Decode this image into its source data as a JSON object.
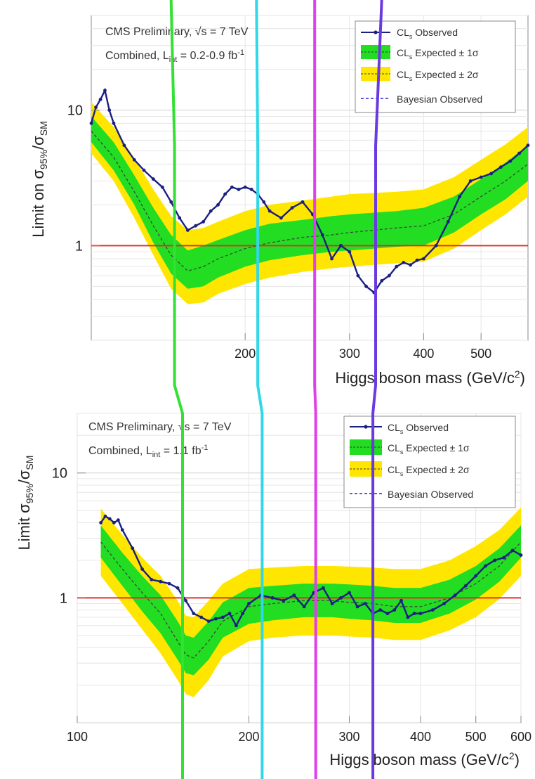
{
  "chart_data": [
    {
      "type": "line",
      "text_lines": [
        "CMS Preliminary, √s = 7 TeV",
        "Combined, L",
        "int",
        " = 0.2-0.9 fb",
        "-1"
      ],
      "ylabel": "Limit on σ",
      "ylabel_sub1": "95%",
      "ylabel_mid": "/σ",
      "ylabel_sub2": "SM",
      "xlabel": "Higgs boson mass (GeV/c",
      "xlabel_sup": "2",
      "xlabel_tail": ")",
      "xscale": "log",
      "yscale": "log",
      "xlim": [
        110,
        600
      ],
      "ylim": [
        0.2,
        50
      ],
      "x_ticks": [
        200,
        300,
        400,
        500
      ],
      "x_tick_labels": [
        "200",
        "300",
        "400",
        "500"
      ],
      "y_ticks": [
        1,
        10
      ],
      "y_tick_labels": [
        "1",
        "10"
      ],
      "reference_line": {
        "y": 1,
        "color": "#e0302a"
      },
      "legend": {
        "position": "top-right",
        "entries": [
          {
            "main": "CL",
            "sub": "s",
            "tail": " Observed",
            "style": "observed"
          },
          {
            "main": "CL",
            "sub": "s",
            "tail": " Expected ± 1σ",
            "style": "band1"
          },
          {
            "main": "CL",
            "sub": "s",
            "tail": " Expected ± 2σ",
            "style": "band2"
          },
          {
            "main": "Bayesian Observed",
            "sub": "",
            "tail": "",
            "style": "bayes"
          }
        ]
      },
      "series": [
        {
          "name": "Observed",
          "x": [
            110,
            112,
            114,
            116,
            118,
            120,
            125,
            130,
            135,
            140,
            145,
            150,
            155,
            160,
            165,
            170,
            175,
            180,
            185,
            190,
            195,
            200,
            205,
            210,
            215,
            220,
            230,
            240,
            250,
            260,
            270,
            280,
            290,
            300,
            310,
            320,
            330,
            340,
            350,
            360,
            370,
            380,
            390,
            400,
            420,
            440,
            460,
            480,
            500,
            520,
            540,
            560,
            580,
            600
          ],
          "y": [
            8.0,
            10.5,
            12.0,
            14.0,
            10.0,
            8.0,
            5.5,
            4.3,
            3.6,
            3.1,
            2.7,
            2.1,
            1.6,
            1.3,
            1.4,
            1.5,
            1.8,
            2.0,
            2.4,
            2.7,
            2.6,
            2.7,
            2.6,
            2.4,
            2.1,
            1.8,
            1.6,
            1.9,
            2.1,
            1.7,
            1.2,
            0.8,
            1.0,
            0.9,
            0.6,
            0.5,
            0.45,
            0.55,
            0.6,
            0.7,
            0.75,
            0.72,
            0.78,
            0.8,
            1.0,
            1.5,
            2.3,
            3.0,
            3.2,
            3.4,
            3.8,
            4.2,
            4.8,
            5.5
          ]
        },
        {
          "name": "Expected",
          "x": [
            110,
            120,
            130,
            140,
            150,
            160,
            170,
            180,
            200,
            220,
            250,
            280,
            300,
            330,
            360,
            400,
            450,
            500,
            550,
            600
          ],
          "y": [
            7.0,
            4.5,
            2.5,
            1.4,
            0.85,
            0.65,
            0.7,
            0.8,
            0.95,
            1.05,
            1.15,
            1.2,
            1.25,
            1.3,
            1.35,
            1.4,
            1.7,
            2.3,
            3.0,
            4.0
          ],
          "band1_low": [
            5.8,
            3.6,
            2.0,
            1.05,
            0.62,
            0.48,
            0.5,
            0.58,
            0.7,
            0.78,
            0.85,
            0.9,
            0.92,
            0.95,
            0.98,
            1.0,
            1.25,
            1.7,
            2.2,
            3.0
          ],
          "band1_high": [
            9.0,
            5.8,
            3.3,
            1.9,
            1.2,
            0.92,
            1.0,
            1.1,
            1.3,
            1.45,
            1.55,
            1.65,
            1.7,
            1.75,
            1.8,
            1.9,
            2.3,
            3.1,
            4.1,
            5.5
          ],
          "band2_low": [
            4.8,
            3.0,
            1.6,
            0.85,
            0.48,
            0.37,
            0.38,
            0.44,
            0.52,
            0.58,
            0.64,
            0.68,
            0.7,
            0.72,
            0.74,
            0.76,
            0.95,
            1.3,
            1.7,
            2.3
          ],
          "band2_high": [
            11.5,
            7.5,
            4.4,
            2.6,
            1.65,
            1.3,
            1.35,
            1.5,
            1.8,
            2.0,
            2.15,
            2.3,
            2.4,
            2.45,
            2.5,
            2.6,
            3.2,
            4.3,
            5.6,
            7.5
          ]
        }
      ]
    },
    {
      "type": "line",
      "text_lines": [
        "CMS Preliminary, √s = 7 TeV",
        "Combined, L",
        "int",
        " = 1.1 fb",
        "-1"
      ],
      "ylabel": "Limit σ",
      "ylabel_sub1": "95%",
      "ylabel_mid": "/σ",
      "ylabel_sub2": "SM",
      "xlabel": "Higgs boson mass (GeV/c",
      "xlabel_sup": "2",
      "xlabel_tail": ")",
      "xscale": "log",
      "yscale": "log",
      "xlim": [
        100,
        600
      ],
      "ylim": [
        0.1,
        30
      ],
      "x_ticks": [
        100,
        200,
        300,
        400,
        500,
        600
      ],
      "x_tick_labels": [
        "100",
        "200",
        "300",
        "400",
        "500",
        "600"
      ],
      "y_ticks": [
        1,
        10
      ],
      "y_tick_labels": [
        "1",
        "10"
      ],
      "reference_line": {
        "y": 1,
        "color": "#e0302a"
      },
      "legend": {
        "position": "top-right",
        "entries": [
          {
            "main": "CL",
            "sub": "s",
            "tail": " Observed",
            "style": "observed"
          },
          {
            "main": "CL",
            "sub": "s",
            "tail": " Expected ± 1σ",
            "style": "band1"
          },
          {
            "main": "CL",
            "sub": "s",
            "tail": " Expected ± 2σ",
            "style": "band2"
          },
          {
            "main": "Bayesian Observed",
            "sub": "",
            "tail": "",
            "style": "bayes"
          }
        ]
      },
      "series": [
        {
          "name": "Observed",
          "x": [
            110,
            112,
            114,
            116,
            118,
            120,
            125,
            130,
            135,
            140,
            145,
            150,
            155,
            160,
            165,
            170,
            175,
            180,
            185,
            190,
            195,
            200,
            210,
            220,
            230,
            240,
            250,
            260,
            270,
            280,
            290,
            300,
            310,
            320,
            330,
            340,
            350,
            360,
            370,
            380,
            390,
            400,
            420,
            440,
            460,
            480,
            500,
            520,
            540,
            560,
            580,
            600
          ],
          "y": [
            4.0,
            4.5,
            4.3,
            4.0,
            4.2,
            3.5,
            2.5,
            1.7,
            1.4,
            1.35,
            1.3,
            1.2,
            0.95,
            0.75,
            0.7,
            0.65,
            0.68,
            0.7,
            0.75,
            0.6,
            0.75,
            0.9,
            1.05,
            1.0,
            0.95,
            1.05,
            0.85,
            1.1,
            1.2,
            0.9,
            1.0,
            1.1,
            0.85,
            0.9,
            0.75,
            0.8,
            0.75,
            0.8,
            0.95,
            0.7,
            0.75,
            0.75,
            0.8,
            0.9,
            1.05,
            1.25,
            1.5,
            1.8,
            2.0,
            2.1,
            2.4,
            2.2
          ]
        },
        {
          "name": "Expected",
          "x": [
            110,
            120,
            130,
            140,
            150,
            155,
            160,
            170,
            180,
            200,
            220,
            250,
            280,
            300,
            330,
            360,
            400,
            450,
            500,
            550,
            600
          ],
          "y": [
            2.8,
            1.7,
            1.1,
            0.75,
            0.45,
            0.35,
            0.33,
            0.45,
            0.65,
            0.85,
            0.9,
            0.95,
            0.95,
            0.92,
            0.9,
            0.85,
            0.85,
            1.0,
            1.3,
            1.8,
            2.8
          ],
          "band1_low": [
            2.1,
            1.25,
            0.78,
            0.52,
            0.32,
            0.25,
            0.24,
            0.32,
            0.48,
            0.62,
            0.66,
            0.7,
            0.7,
            0.68,
            0.66,
            0.63,
            0.63,
            0.75,
            0.97,
            1.35,
            2.1
          ],
          "band1_high": [
            3.8,
            2.3,
            1.5,
            1.05,
            0.65,
            0.5,
            0.48,
            0.65,
            0.92,
            1.2,
            1.25,
            1.3,
            1.3,
            1.28,
            1.25,
            1.2,
            1.2,
            1.4,
            1.8,
            2.5,
            3.8
          ],
          "band2_low": [
            1.5,
            0.9,
            0.56,
            0.36,
            0.22,
            0.17,
            0.16,
            0.22,
            0.34,
            0.45,
            0.48,
            0.5,
            0.5,
            0.49,
            0.48,
            0.46,
            0.46,
            0.55,
            0.7,
            0.98,
            1.5
          ],
          "band2_high": [
            5.2,
            3.2,
            2.1,
            1.5,
            0.95,
            0.72,
            0.7,
            0.95,
            1.3,
            1.7,
            1.75,
            1.8,
            1.8,
            1.78,
            1.75,
            1.7,
            1.7,
            2.0,
            2.6,
            3.5,
            5.3
          ]
        }
      ]
    }
  ],
  "overlay_lines": [
    {
      "color": "#35e035",
      "x": [
        150,
        152,
        153
      ]
    },
    {
      "color": "#30d8e8",
      "x": [
        209,
        210,
        211
      ]
    },
    {
      "color": "#e040e8",
      "x": [
        262,
        262,
        262
      ]
    },
    {
      "color": "#6a3ae0",
      "x": [
        340,
        332,
        330
      ]
    }
  ],
  "colors": {
    "band1": "#22dd22",
    "band2": "#ffe600",
    "observed": "#1a1f80",
    "expected": "#3c3c3c",
    "bayes": "#5a5ae0",
    "frame": "#888888",
    "text": "#222222"
  }
}
